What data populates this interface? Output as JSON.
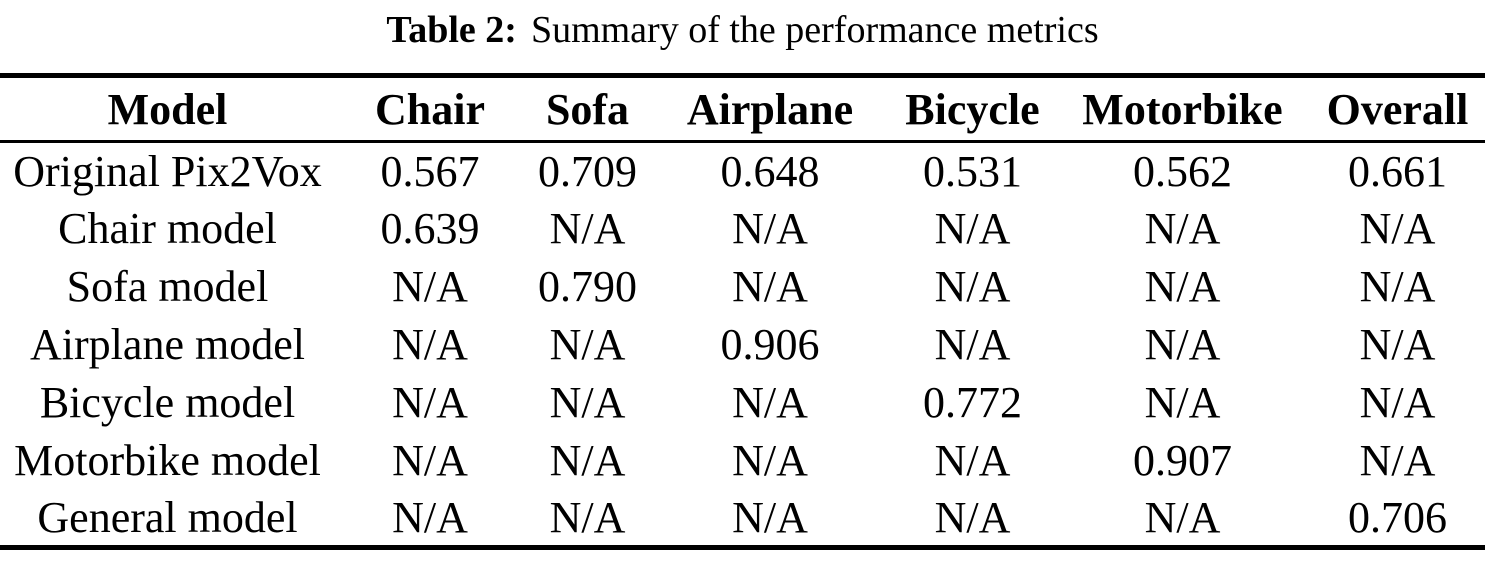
{
  "caption": {
    "label": "Table 2:",
    "text": "Summary of the performance metrics"
  },
  "table": {
    "columns": [
      "Model",
      "Chair",
      "Sofa",
      "Airplane",
      "Bicycle",
      "Motorbike",
      "Overall"
    ],
    "rows": [
      {
        "model": "Original Pix2Vox",
        "values": [
          "0.567",
          "0.709",
          "0.648",
          "0.531",
          "0.562",
          "0.661"
        ]
      },
      {
        "model": "Chair model",
        "values": [
          "0.639",
          "N/A",
          "N/A",
          "N/A",
          "N/A",
          "N/A"
        ]
      },
      {
        "model": "Sofa model",
        "values": [
          "N/A",
          "0.790",
          "N/A",
          "N/A",
          "N/A",
          "N/A"
        ]
      },
      {
        "model": "Airplane model",
        "values": [
          "N/A",
          "N/A",
          "0.906",
          "N/A",
          "N/A",
          "N/A"
        ]
      },
      {
        "model": "Bicycle model",
        "values": [
          "N/A",
          "N/A",
          "N/A",
          "0.772",
          "N/A",
          "N/A"
        ]
      },
      {
        "model": "Motorbike model",
        "values": [
          "N/A",
          "N/A",
          "N/A",
          "N/A",
          "0.907",
          "N/A"
        ]
      },
      {
        "model": "General model",
        "values": [
          "N/A",
          "N/A",
          "N/A",
          "N/A",
          "N/A",
          "0.706"
        ]
      }
    ]
  },
  "colors": {
    "text": "#000000",
    "background": "#ffffff",
    "rule": "#000000"
  }
}
